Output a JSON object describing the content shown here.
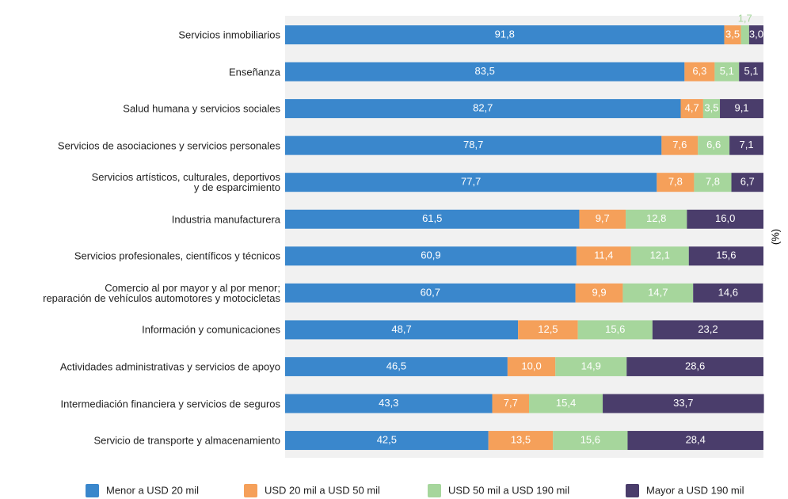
{
  "chart_data": {
    "type": "stacked-bar-horizontal",
    "unit_label": "(%)",
    "categories": [
      "Servicios inmobiliarios",
      "Enseñanza",
      "Salud humana y servicios sociales",
      "Servicios de asociaciones y servicios personales",
      "Servicios artísticos, culturales, deportivos\ny de esparcimiento",
      "Industria manufacturera",
      "Servicios profesionales, científicos y técnicos",
      "Comercio al por mayor y al por menor;\nreparación de vehículos automotores y motocicletas",
      "Información y comunicaciones",
      "Actividades administrativas y servicios de apoyo",
      "Intermediación financiera y servicios de seguros",
      "Servicio de transporte y almacenamiento"
    ],
    "xlim": [
      0,
      100
    ],
    "series": [
      {
        "name": "Menor a USD 20 mil",
        "color": "#3a87cc",
        "values": [
          91.8,
          83.5,
          82.7,
          78.7,
          77.7,
          61.5,
          60.9,
          60.7,
          48.7,
          46.5,
          43.3,
          42.5
        ],
        "value_labels": [
          "91,8",
          "83,5",
          "82,7",
          "78,7",
          "77,7",
          "61,5",
          "60,9",
          "60,7",
          "48,7",
          "46,5",
          "43,3",
          "42,5"
        ]
      },
      {
        "name": "USD 20 mil a USD 50 mil",
        "color": "#f5a05a",
        "values": [
          3.5,
          6.3,
          4.7,
          7.6,
          7.8,
          9.7,
          11.4,
          9.9,
          12.5,
          10.0,
          7.7,
          13.5
        ],
        "value_labels": [
          "3,5",
          "6,3",
          "4,7",
          "7,6",
          "7,8",
          "9,7",
          "11,4",
          "9,9",
          "12,5",
          "10,0",
          "7,7",
          "13,5"
        ]
      },
      {
        "name": "USD 50 mil a USD 190 mil",
        "color": "#a6d69c",
        "values": [
          1.7,
          5.1,
          3.5,
          6.6,
          7.8,
          12.8,
          12.1,
          14.7,
          15.6,
          14.9,
          15.4,
          15.6
        ],
        "value_labels": [
          "1,7",
          "5,1",
          "3,5",
          "6,6",
          "7,8",
          "12,8",
          "12,1",
          "14,7",
          "15,6",
          "14,9",
          "15,4",
          "15,6"
        ]
      },
      {
        "name": "Mayor a USD 190 mil",
        "color": "#4a3d6b",
        "values": [
          3.0,
          5.1,
          9.1,
          7.1,
          6.7,
          16.0,
          15.6,
          14.6,
          23.2,
          28.6,
          33.7,
          28.4
        ],
        "value_labels": [
          "3,0",
          "5,1",
          "9,1",
          "7,1",
          "6,7",
          "16,0",
          "15,6",
          "14,6",
          "23,2",
          "28,6",
          "33,7",
          "28,4"
        ]
      }
    ]
  }
}
